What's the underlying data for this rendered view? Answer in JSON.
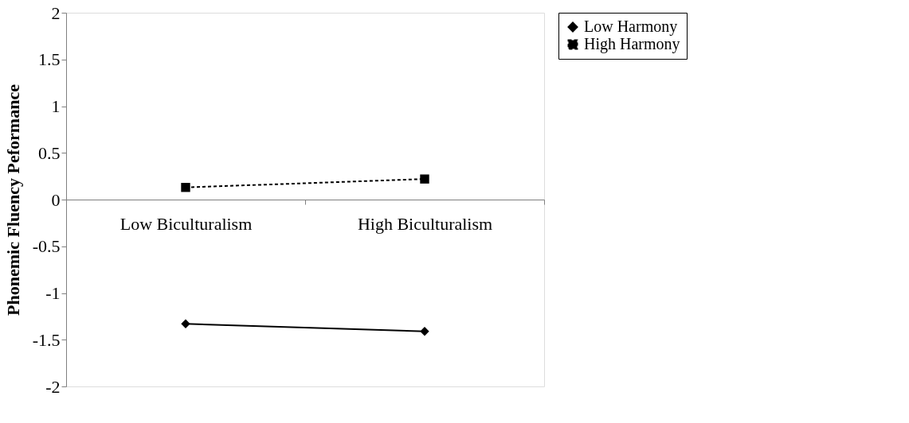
{
  "chart_data": {
    "type": "line",
    "ylabel": "Phonemic Fluency Peformance",
    "categories": [
      "Low Biculturalism",
      "High Biculturalism"
    ],
    "series": [
      {
        "name": "Low Harmony",
        "color": "#000000",
        "marker": "diamond",
        "line_style": "solid",
        "values": [
          -1.33,
          -1.41
        ]
      },
      {
        "name": "High Harmony",
        "color": "#000000",
        "marker": "square",
        "line_style": "dashed",
        "values": [
          0.13,
          0.22
        ]
      }
    ],
    "ylim": [
      -2,
      2
    ],
    "yticks": [
      -2,
      -1.5,
      -1,
      -0.5,
      0,
      0.5,
      1,
      1.5,
      2
    ],
    "grid": false,
    "legend": "right"
  }
}
